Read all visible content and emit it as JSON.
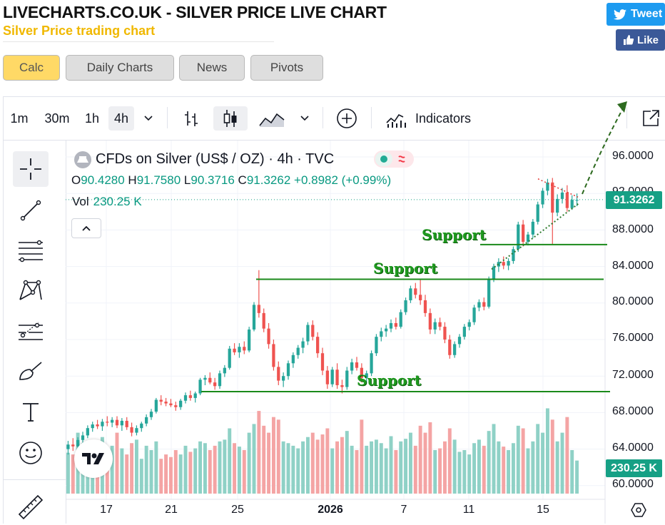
{
  "header": {
    "title": "LIVECHARTS.CO.UK - SILVER PRICE LIVE CHART",
    "subtitle": "Silver Price trading chart",
    "tweet_label": "Tweet",
    "like_label": "Like"
  },
  "tabs": [
    {
      "label": "Calc",
      "active": true
    },
    {
      "label": "Daily Charts",
      "active": false
    },
    {
      "label": "News",
      "active": false
    },
    {
      "label": "Pivots",
      "active": false
    }
  ],
  "toolbar": {
    "intervals": [
      "1m",
      "30m",
      "1h",
      "4h"
    ],
    "selected_interval": "4h",
    "indicators_label": "Indicators",
    "icons": [
      "chevron-down-icon",
      "bar-chart-icon",
      "candles-icon",
      "area-chart-icon",
      "plus-circle-icon",
      "indicators-icon",
      "fullscreen-icon"
    ]
  },
  "side_tools": [
    "crosshair-icon",
    "trend-line-icon",
    "fib-icon",
    "pattern-icon",
    "projection-icon",
    "brush-icon",
    "text-icon",
    "emoji-icon",
    "ruler-icon"
  ],
  "legend": {
    "symbol": "CFDs on Silver (US$ / OZ) · 4h · TVC",
    "o_label": "O",
    "o": "90.4280",
    "h_label": "H",
    "h": "91.7580",
    "l_label": "L",
    "l": "90.3716",
    "c_label": "C",
    "c": "91.3262",
    "change": "+0.8982 (+0.99%)",
    "vol_label": "Vol",
    "vol": "230.25 K"
  },
  "price_axis": {
    "ticks": [
      "96.0000",
      "92.0000",
      "88.0000",
      "84.0000",
      "80.0000",
      "76.0000",
      "72.0000",
      "68.0000",
      "64.0000",
      "60.0000"
    ],
    "last_price": "91.3262",
    "last_volume": "230.25 K"
  },
  "time_axis": {
    "ticks": [
      {
        "label": "17",
        "bold": false
      },
      {
        "label": "21",
        "bold": false
      },
      {
        "label": "25",
        "bold": false
      },
      {
        "label": "2026",
        "bold": true
      },
      {
        "label": "7",
        "bold": false
      },
      {
        "label": "11",
        "bold": false
      },
      {
        "label": "15",
        "bold": false
      }
    ]
  },
  "annotations": {
    "support_labels": [
      "Support",
      "Support",
      "Support"
    ]
  },
  "colors": {
    "up": "#26a69a",
    "down": "#ef5350",
    "vol_up": "#8fd1c6",
    "vol_down": "#f4a4a4",
    "support": "#1a8a1a",
    "accent": "#089981"
  },
  "chart_data": {
    "type": "candlestick",
    "title": "CFDs on Silver (US$ / OZ) · 4h · TVC",
    "ylim": [
      58.5,
      98.5
    ],
    "support_levels": [
      86.4,
      82.6,
      70.3
    ],
    "candles": [
      {
        "o": 64.0,
        "h": 64.9,
        "l": 63.4,
        "c": 64.5,
        "v": 47
      },
      {
        "o": 64.5,
        "h": 65.2,
        "l": 63.8,
        "c": 64.3,
        "v": 45
      },
      {
        "o": 64.3,
        "h": 65.3,
        "l": 64.0,
        "c": 65.0,
        "v": 70
      },
      {
        "o": 65.0,
        "h": 65.9,
        "l": 64.6,
        "c": 65.5,
        "v": 58
      },
      {
        "o": 65.5,
        "h": 66.6,
        "l": 65.2,
        "c": 66.3,
        "v": 60
      },
      {
        "o": 66.3,
        "h": 67.0,
        "l": 65.9,
        "c": 66.7,
        "v": 62
      },
      {
        "o": 66.7,
        "h": 67.2,
        "l": 66.2,
        "c": 66.5,
        "v": 50
      },
      {
        "o": 66.5,
        "h": 67.3,
        "l": 66.0,
        "c": 67.0,
        "v": 65
      },
      {
        "o": 67.0,
        "h": 67.6,
        "l": 66.5,
        "c": 66.9,
        "v": 48
      },
      {
        "o": 66.9,
        "h": 67.5,
        "l": 66.4,
        "c": 67.2,
        "v": 55
      },
      {
        "o": 67.2,
        "h": 67.6,
        "l": 66.3,
        "c": 66.6,
        "v": 70
      },
      {
        "o": 66.6,
        "h": 67.4,
        "l": 66.0,
        "c": 67.1,
        "v": 52
      },
      {
        "o": 67.1,
        "h": 67.5,
        "l": 66.1,
        "c": 66.4,
        "v": 45
      },
      {
        "o": 66.4,
        "h": 66.9,
        "l": 65.4,
        "c": 65.8,
        "v": 58
      },
      {
        "o": 65.8,
        "h": 66.6,
        "l": 65.5,
        "c": 66.3,
        "v": 62
      },
      {
        "o": 66.3,
        "h": 67.0,
        "l": 65.9,
        "c": 66.8,
        "v": 40
      },
      {
        "o": 66.8,
        "h": 67.8,
        "l": 66.5,
        "c": 67.5,
        "v": 55
      },
      {
        "o": 67.5,
        "h": 68.4,
        "l": 67.2,
        "c": 68.1,
        "v": 50
      },
      {
        "o": 68.1,
        "h": 69.6,
        "l": 67.9,
        "c": 69.4,
        "v": 60
      },
      {
        "o": 69.4,
        "h": 69.9,
        "l": 68.8,
        "c": 69.2,
        "v": 40
      },
      {
        "o": 69.2,
        "h": 69.6,
        "l": 68.7,
        "c": 69.0,
        "v": 45
      },
      {
        "o": 69.0,
        "h": 69.5,
        "l": 68.6,
        "c": 68.8,
        "v": 42
      },
      {
        "o": 68.8,
        "h": 69.2,
        "l": 68.2,
        "c": 68.6,
        "v": 50
      },
      {
        "o": 68.6,
        "h": 69.5,
        "l": 68.3,
        "c": 69.3,
        "v": 45
      },
      {
        "o": 69.3,
        "h": 70.2,
        "l": 69.0,
        "c": 69.9,
        "v": 55
      },
      {
        "o": 69.9,
        "h": 70.4,
        "l": 69.3,
        "c": 69.6,
        "v": 48
      },
      {
        "o": 69.6,
        "h": 70.3,
        "l": 69.1,
        "c": 70.1,
        "v": 52
      },
      {
        "o": 70.1,
        "h": 71.8,
        "l": 69.9,
        "c": 71.6,
        "v": 60
      },
      {
        "o": 71.6,
        "h": 72.1,
        "l": 71.0,
        "c": 71.8,
        "v": 58
      },
      {
        "o": 71.8,
        "h": 72.4,
        "l": 71.1,
        "c": 71.3,
        "v": 50
      },
      {
        "o": 71.3,
        "h": 71.8,
        "l": 70.5,
        "c": 70.9,
        "v": 55
      },
      {
        "o": 70.9,
        "h": 72.6,
        "l": 70.6,
        "c": 72.3,
        "v": 60
      },
      {
        "o": 72.3,
        "h": 73.2,
        "l": 71.9,
        "c": 72.9,
        "v": 62
      },
      {
        "o": 72.9,
        "h": 75.3,
        "l": 72.7,
        "c": 75.0,
        "v": 75
      },
      {
        "o": 75.0,
        "h": 75.6,
        "l": 74.3,
        "c": 74.6,
        "v": 58
      },
      {
        "o": 74.6,
        "h": 75.6,
        "l": 74.0,
        "c": 75.2,
        "v": 54
      },
      {
        "o": 75.2,
        "h": 75.8,
        "l": 74.4,
        "c": 74.8,
        "v": 50
      },
      {
        "o": 74.8,
        "h": 77.4,
        "l": 74.6,
        "c": 77.1,
        "v": 70
      },
      {
        "o": 77.1,
        "h": 80.1,
        "l": 76.9,
        "c": 79.8,
        "v": 80
      },
      {
        "o": 79.8,
        "h": 83.6,
        "l": 78.4,
        "c": 78.9,
        "v": 95
      },
      {
        "o": 78.9,
        "h": 79.4,
        "l": 76.8,
        "c": 77.2,
        "v": 78
      },
      {
        "o": 77.2,
        "h": 77.8,
        "l": 75.0,
        "c": 75.5,
        "v": 70
      },
      {
        "o": 75.5,
        "h": 76.0,
        "l": 72.6,
        "c": 73.0,
        "v": 88
      },
      {
        "o": 73.0,
        "h": 73.6,
        "l": 71.0,
        "c": 71.5,
        "v": 85
      },
      {
        "o": 71.5,
        "h": 72.4,
        "l": 70.8,
        "c": 72.0,
        "v": 60
      },
      {
        "o": 72.0,
        "h": 73.7,
        "l": 71.6,
        "c": 73.4,
        "v": 58
      },
      {
        "o": 73.4,
        "h": 74.6,
        "l": 72.9,
        "c": 74.3,
        "v": 55
      },
      {
        "o": 74.3,
        "h": 75.4,
        "l": 73.9,
        "c": 75.1,
        "v": 52
      },
      {
        "o": 75.1,
        "h": 76.2,
        "l": 74.5,
        "c": 75.8,
        "v": 60
      },
      {
        "o": 75.8,
        "h": 77.9,
        "l": 75.4,
        "c": 77.6,
        "v": 65
      },
      {
        "o": 77.6,
        "h": 78.1,
        "l": 75.9,
        "c": 76.3,
        "v": 70
      },
      {
        "o": 76.3,
        "h": 76.8,
        "l": 74.0,
        "c": 74.5,
        "v": 62
      },
      {
        "o": 74.5,
        "h": 75.1,
        "l": 72.1,
        "c": 72.6,
        "v": 68
      },
      {
        "o": 72.6,
        "h": 73.1,
        "l": 70.6,
        "c": 71.1,
        "v": 75
      },
      {
        "o": 71.1,
        "h": 73.0,
        "l": 70.8,
        "c": 72.7,
        "v": 52
      },
      {
        "o": 72.7,
        "h": 73.4,
        "l": 70.6,
        "c": 71.0,
        "v": 60
      },
      {
        "o": 71.0,
        "h": 71.6,
        "l": 70.1,
        "c": 70.8,
        "v": 65
      },
      {
        "o": 70.8,
        "h": 73.0,
        "l": 70.5,
        "c": 72.6,
        "v": 72
      },
      {
        "o": 72.6,
        "h": 73.9,
        "l": 72.2,
        "c": 73.5,
        "v": 55
      },
      {
        "o": 73.5,
        "h": 74.1,
        "l": 72.6,
        "c": 72.9,
        "v": 50
      },
      {
        "o": 72.9,
        "h": 73.4,
        "l": 71.3,
        "c": 71.8,
        "v": 85
      },
      {
        "o": 71.8,
        "h": 72.6,
        "l": 71.2,
        "c": 72.3,
        "v": 55
      },
      {
        "o": 72.3,
        "h": 74.8,
        "l": 72.0,
        "c": 74.5,
        "v": 60
      },
      {
        "o": 74.5,
        "h": 76.6,
        "l": 74.2,
        "c": 76.3,
        "v": 62
      },
      {
        "o": 76.3,
        "h": 77.3,
        "l": 75.8,
        "c": 76.9,
        "v": 58
      },
      {
        "o": 76.9,
        "h": 77.6,
        "l": 76.3,
        "c": 77.2,
        "v": 52
      },
      {
        "o": 77.2,
        "h": 78.2,
        "l": 76.8,
        "c": 77.8,
        "v": 66
      },
      {
        "o": 77.8,
        "h": 78.4,
        "l": 77.1,
        "c": 77.4,
        "v": 50
      },
      {
        "o": 77.4,
        "h": 79.3,
        "l": 77.2,
        "c": 79.0,
        "v": 60
      },
      {
        "o": 79.0,
        "h": 80.6,
        "l": 78.7,
        "c": 80.3,
        "v": 63
      },
      {
        "o": 80.3,
        "h": 81.9,
        "l": 80.0,
        "c": 81.6,
        "v": 70
      },
      {
        "o": 81.6,
        "h": 82.2,
        "l": 80.5,
        "c": 80.9,
        "v": 55
      },
      {
        "o": 80.9,
        "h": 82.6,
        "l": 79.8,
        "c": 80.3,
        "v": 78
      },
      {
        "o": 80.3,
        "h": 80.9,
        "l": 78.5,
        "c": 78.9,
        "v": 70
      },
      {
        "o": 78.9,
        "h": 79.4,
        "l": 76.6,
        "c": 77.1,
        "v": 82
      },
      {
        "o": 77.1,
        "h": 78.3,
        "l": 76.6,
        "c": 77.9,
        "v": 50
      },
      {
        "o": 77.9,
        "h": 78.4,
        "l": 77.0,
        "c": 77.4,
        "v": 52
      },
      {
        "o": 77.4,
        "h": 77.9,
        "l": 75.6,
        "c": 76.0,
        "v": 60
      },
      {
        "o": 76.0,
        "h": 76.5,
        "l": 73.9,
        "c": 74.3,
        "v": 75
      },
      {
        "o": 74.3,
        "h": 75.8,
        "l": 74.0,
        "c": 75.5,
        "v": 62
      },
      {
        "o": 75.5,
        "h": 76.6,
        "l": 75.1,
        "c": 76.3,
        "v": 48
      },
      {
        "o": 76.3,
        "h": 77.7,
        "l": 76.0,
        "c": 77.4,
        "v": 50
      },
      {
        "o": 77.4,
        "h": 78.2,
        "l": 77.0,
        "c": 77.9,
        "v": 45
      },
      {
        "o": 77.9,
        "h": 79.8,
        "l": 77.6,
        "c": 79.5,
        "v": 58
      },
      {
        "o": 79.5,
        "h": 80.4,
        "l": 79.1,
        "c": 80.1,
        "v": 62
      },
      {
        "o": 80.1,
        "h": 80.6,
        "l": 79.2,
        "c": 79.6,
        "v": 55
      },
      {
        "o": 79.6,
        "h": 82.9,
        "l": 79.4,
        "c": 82.6,
        "v": 72
      },
      {
        "o": 82.6,
        "h": 84.3,
        "l": 82.3,
        "c": 84.0,
        "v": 80
      },
      {
        "o": 84.0,
        "h": 84.9,
        "l": 83.4,
        "c": 84.5,
        "v": 60
      },
      {
        "o": 84.5,
        "h": 85.1,
        "l": 83.7,
        "c": 84.1,
        "v": 54
      },
      {
        "o": 84.1,
        "h": 84.9,
        "l": 83.6,
        "c": 84.6,
        "v": 50
      },
      {
        "o": 84.6,
        "h": 86.2,
        "l": 84.3,
        "c": 85.9,
        "v": 58
      },
      {
        "o": 85.9,
        "h": 88.9,
        "l": 85.6,
        "c": 88.6,
        "v": 78
      },
      {
        "o": 88.6,
        "h": 89.1,
        "l": 86.2,
        "c": 86.7,
        "v": 75
      },
      {
        "o": 86.7,
        "h": 87.8,
        "l": 86.3,
        "c": 87.5,
        "v": 52
      },
      {
        "o": 87.5,
        "h": 89.2,
        "l": 87.1,
        "c": 88.9,
        "v": 60
      },
      {
        "o": 88.9,
        "h": 91.1,
        "l": 88.6,
        "c": 90.8,
        "v": 80
      },
      {
        "o": 90.8,
        "h": 92.6,
        "l": 90.4,
        "c": 92.3,
        "v": 70
      },
      {
        "o": 92.3,
        "h": 93.6,
        "l": 91.8,
        "c": 93.2,
        "v": 98
      },
      {
        "o": 93.2,
        "h": 93.7,
        "l": 86.4,
        "c": 89.9,
        "v": 85
      },
      {
        "o": 89.9,
        "h": 91.9,
        "l": 89.5,
        "c": 91.4,
        "v": 60
      },
      {
        "o": 91.4,
        "h": 92.6,
        "l": 90.9,
        "c": 92.1,
        "v": 70
      },
      {
        "o": 92.1,
        "h": 92.9,
        "l": 90.0,
        "c": 90.4,
        "v": 88
      },
      {
        "o": 90.4,
        "h": 91.8,
        "l": 90.2,
        "c": 91.3,
        "v": 50
      },
      {
        "o": 91.3,
        "h": 92.0,
        "l": 90.6,
        "c": 91.3,
        "v": 38
      }
    ]
  }
}
